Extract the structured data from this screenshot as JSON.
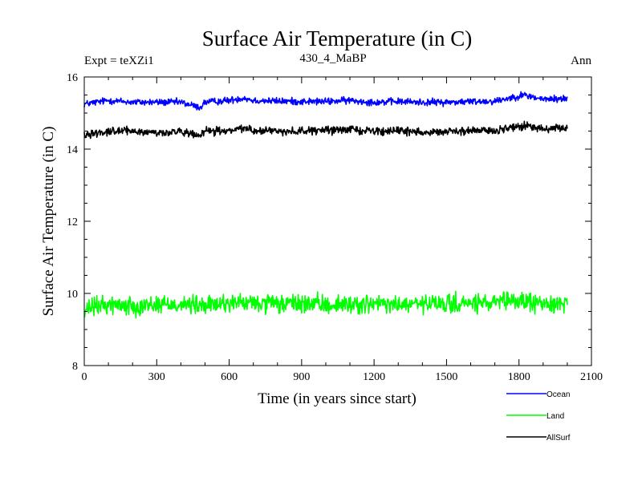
{
  "chart_data": {
    "type": "line",
    "title": "Surface Air Temperature (in C)",
    "subtitle_left": "Expt = teXZi1",
    "subtitle_center": "430_4_MaBP",
    "subtitle_right": "Ann",
    "xlabel": "Time (in years since start)",
    "ylabel": "Surface Air Temperature (in C)",
    "xlim": [
      0,
      2100
    ],
    "ylim": [
      8,
      16
    ],
    "xticks": [
      0,
      300,
      600,
      900,
      1200,
      1500,
      1800,
      2100
    ],
    "xtick_labels": [
      "0",
      "300",
      "600",
      "900",
      "1200",
      "1500",
      "1800",
      "2100"
    ],
    "yticks": [
      8,
      10,
      12,
      14,
      16
    ],
    "ytick_labels": [
      "8",
      "10",
      "12",
      "14",
      "16"
    ],
    "series": [
      {
        "name": "Ocean",
        "color": "#0000ff",
        "x": [
          0,
          100,
          200,
          300,
          400,
          480,
          500,
          600,
          660,
          700,
          800,
          900,
          1000,
          1100,
          1200,
          1300,
          1400,
          1500,
          1600,
          1700,
          1780,
          1820,
          1900,
          2000
        ],
        "values": [
          15.25,
          15.35,
          15.3,
          15.3,
          15.3,
          15.15,
          15.3,
          15.35,
          15.42,
          15.35,
          15.33,
          15.32,
          15.32,
          15.35,
          15.3,
          15.32,
          15.3,
          15.3,
          15.32,
          15.33,
          15.45,
          15.5,
          15.38,
          15.4
        ]
      },
      {
        "name": "Land",
        "color": "#00ff00",
        "x": [
          0,
          20,
          100,
          200,
          300,
          400,
          500,
          600,
          700,
          800,
          900,
          1000,
          1100,
          1200,
          1300,
          1400,
          1500,
          1600,
          1700,
          1800,
          1900,
          2000
        ],
        "values": [
          9.4,
          9.6,
          9.7,
          9.65,
          9.7,
          9.7,
          9.65,
          9.75,
          9.72,
          9.7,
          9.72,
          9.68,
          9.7,
          9.7,
          9.68,
          9.7,
          9.7,
          9.72,
          9.72,
          9.8,
          9.7,
          9.75
        ]
      },
      {
        "name": "AllSurf",
        "color": "#000000",
        "x": [
          0,
          100,
          200,
          300,
          400,
          480,
          500,
          600,
          660,
          700,
          800,
          900,
          1000,
          1100,
          1200,
          1300,
          1400,
          1500,
          1600,
          1700,
          1780,
          1820,
          1900,
          2000
        ],
        "values": [
          14.4,
          14.5,
          14.5,
          14.45,
          14.48,
          14.35,
          14.5,
          14.5,
          14.6,
          14.52,
          14.5,
          14.5,
          14.52,
          14.55,
          14.5,
          14.5,
          14.48,
          14.48,
          14.5,
          14.52,
          14.6,
          14.65,
          14.55,
          14.58
        ]
      }
    ],
    "legend_position": "bottom-right"
  }
}
